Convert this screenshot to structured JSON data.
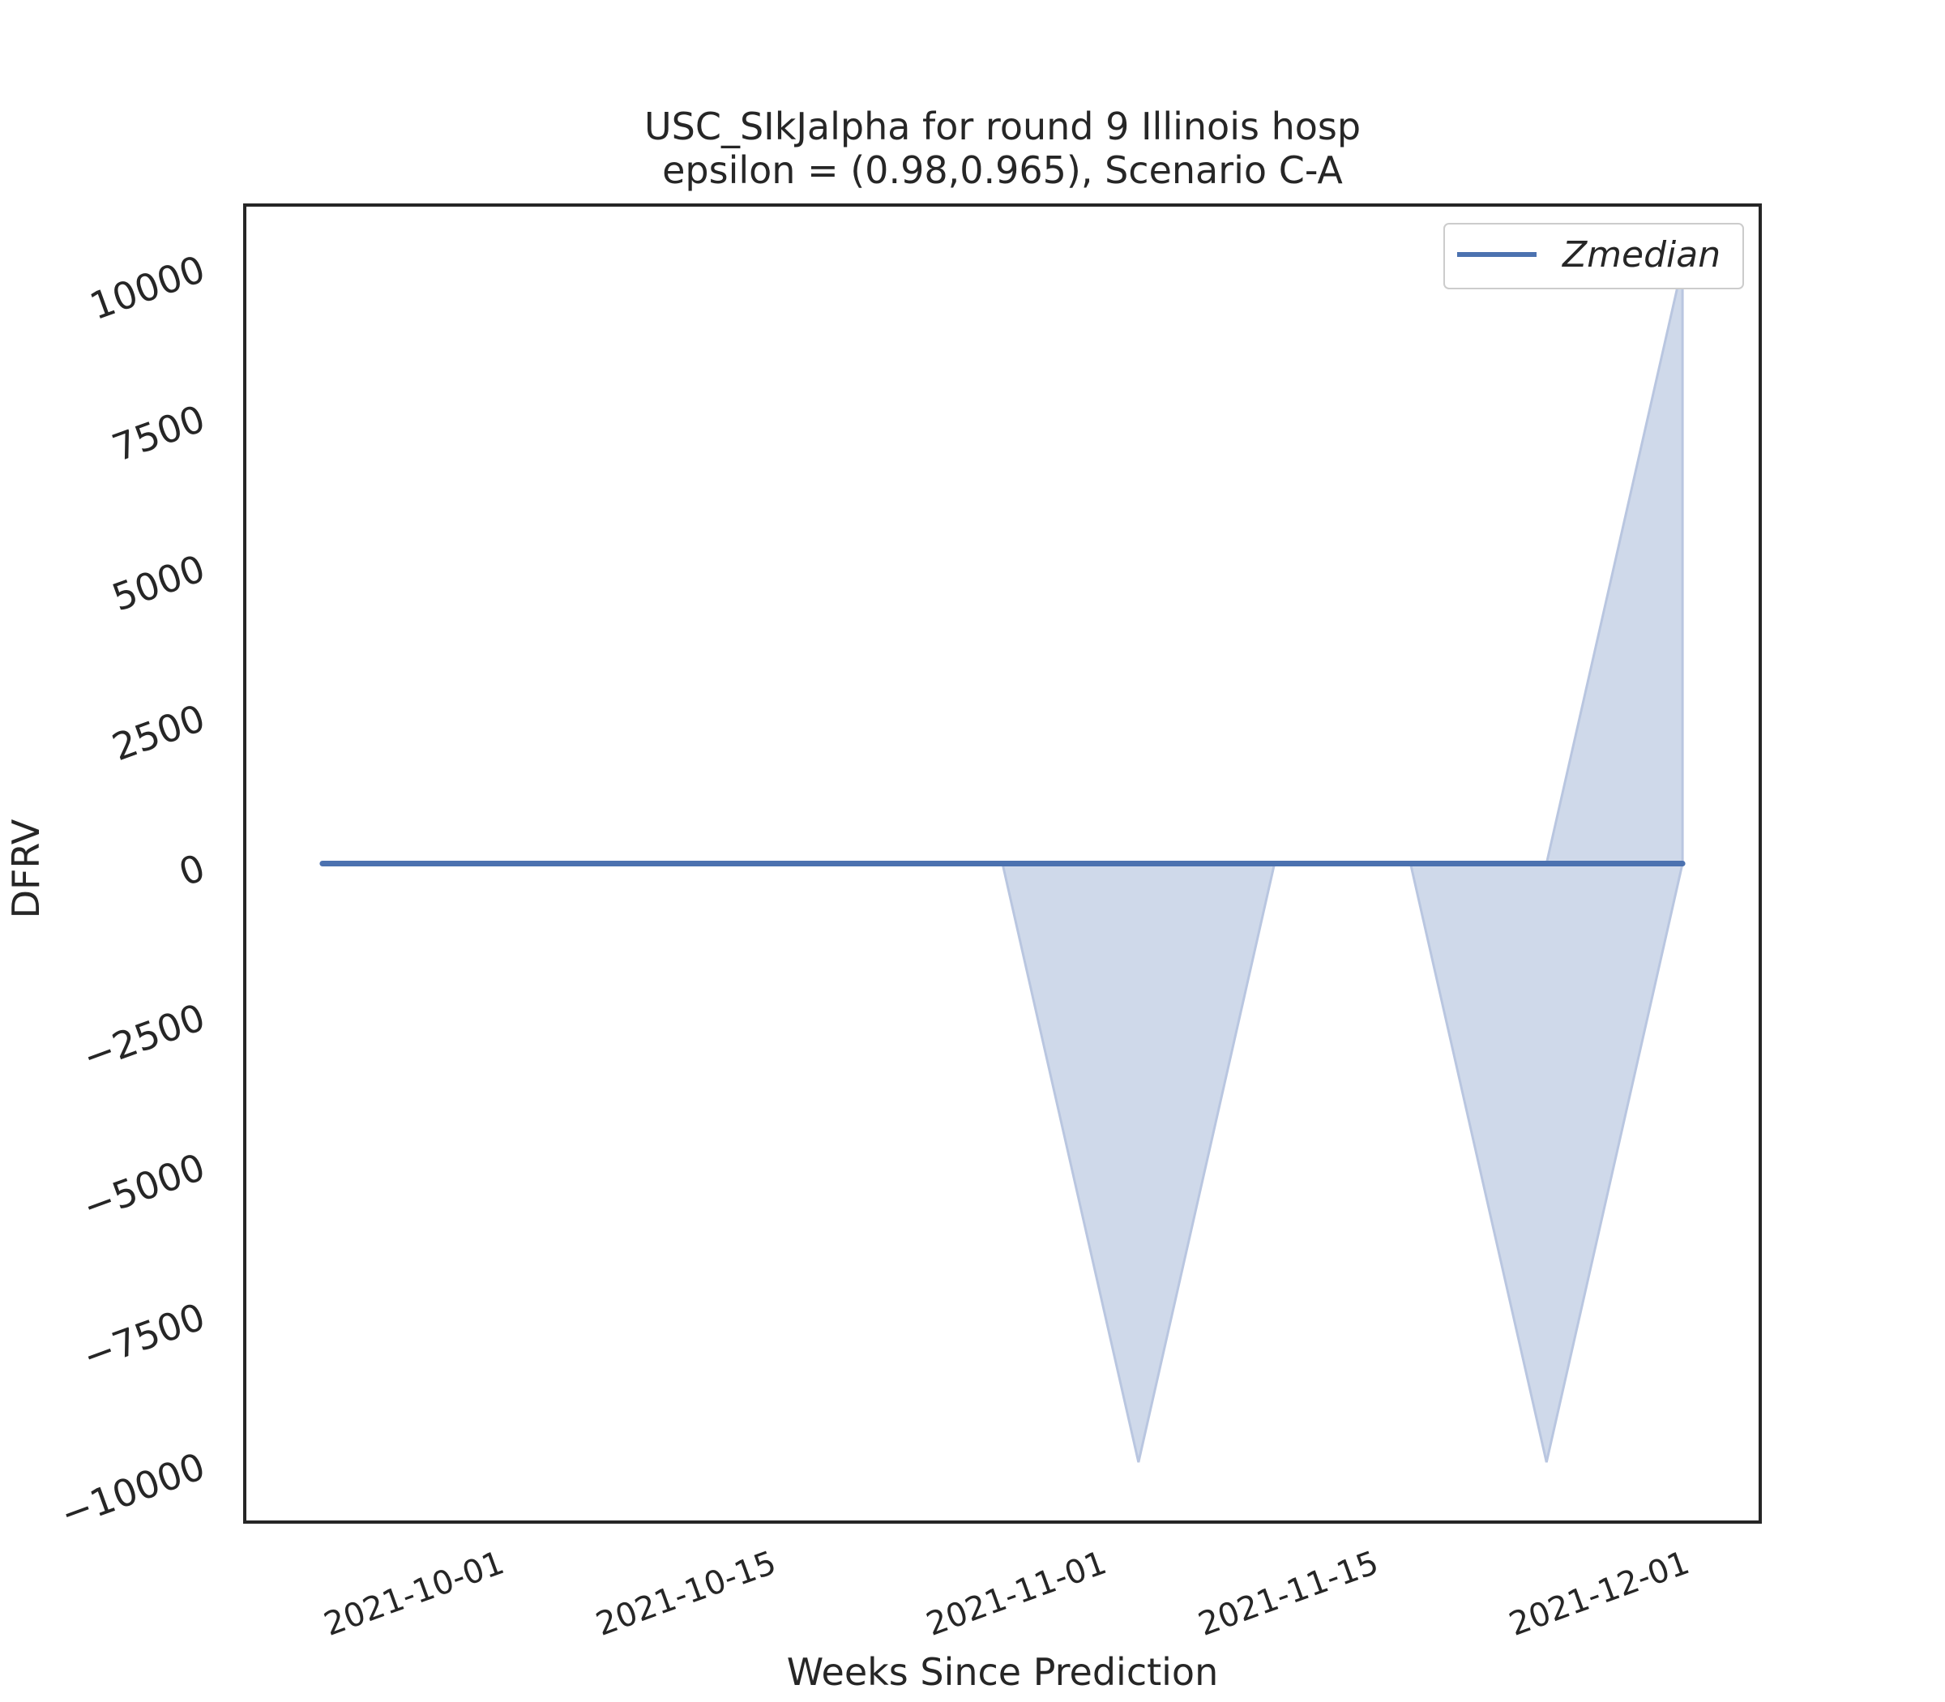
{
  "chart_data": {
    "type": "area",
    "title": "USC_SIkJalpha for round 9 Illinois  hosp",
    "subtitle": "epsilon = (0.98,0.965), Scenario C-A",
    "xlabel": "Weeks Since Prediction",
    "ylabel": "DFRV",
    "x_ticks": [
      "2021-10-01",
      "2021-10-15",
      "2021-11-01",
      "2021-11-15",
      "2021-12-01"
    ],
    "y_ticks": [
      {
        "value": 10000,
        "label": "10000"
      },
      {
        "value": 7500,
        "label": "7500"
      },
      {
        "value": 5000,
        "label": "5000"
      },
      {
        "value": 2500,
        "label": "2500"
      },
      {
        "value": 0,
        "label": "0"
      },
      {
        "value": -2500,
        "label": "−2500"
      },
      {
        "value": -5000,
        "label": "−5000"
      },
      {
        "value": -7500,
        "label": "−7500"
      },
      {
        "value": -10000,
        "label": "−10000"
      }
    ],
    "xlim": [
      "2021-09-19",
      "2021-12-06"
    ],
    "ylim": [
      -11000,
      11000
    ],
    "grid": false,
    "legend_position": "top-right",
    "x": [
      "2021-09-23",
      "2021-09-30",
      "2021-10-07",
      "2021-10-14",
      "2021-10-21",
      "2021-10-28",
      "2021-11-04",
      "2021-11-11",
      "2021-11-18",
      "2021-11-25",
      "2021-12-02"
    ],
    "series": [
      {
        "name": "Zmedian",
        "values": [
          0,
          0,
          0,
          0,
          0,
          0,
          0,
          0,
          0,
          0,
          0
        ],
        "lower": [
          0,
          0,
          0,
          0,
          0,
          0,
          -10000,
          0,
          0,
          -10000,
          0
        ],
        "upper": [
          0,
          0,
          0,
          0,
          0,
          0,
          0,
          0,
          0,
          0,
          10000
        ]
      }
    ],
    "colors": {
      "line": "#4c72b0",
      "band": "#cfd9ea",
      "band_edge": "#b9c6e0",
      "frame": "#262626"
    }
  }
}
